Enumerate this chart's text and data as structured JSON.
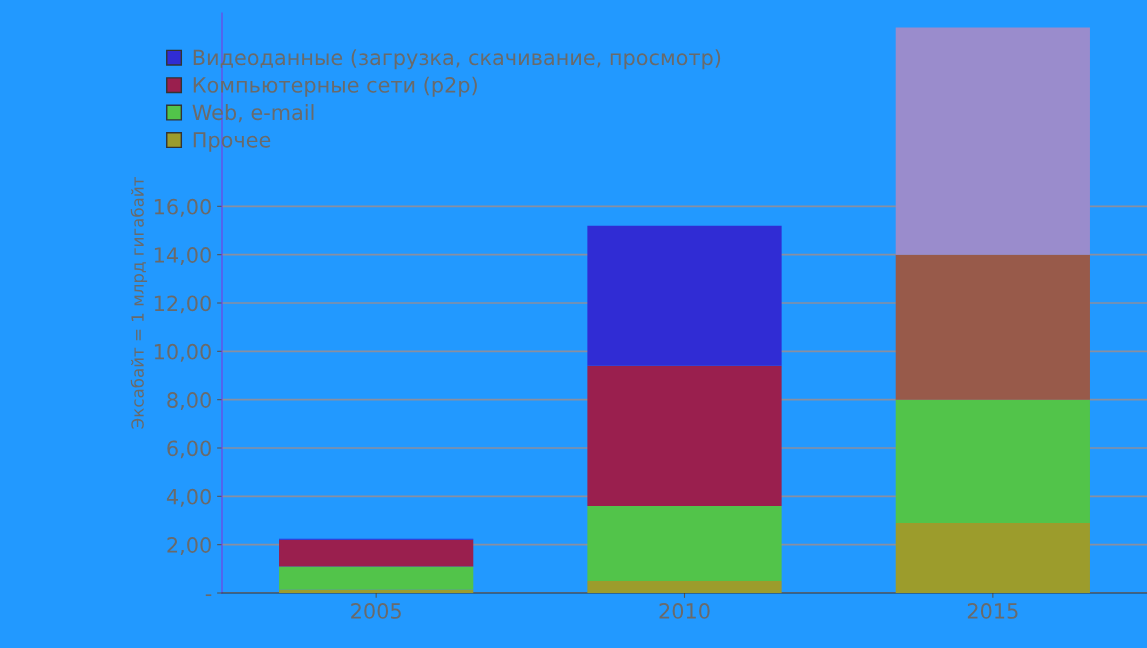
{
  "chart_data": {
    "type": "bar",
    "stacked": true,
    "ylabel": "Эксабайт = 1 млрд гигабайт",
    "categories": [
      "2005",
      "2010",
      "2015"
    ],
    "series": [
      {
        "name": "Прочее",
        "color": "#9c9c2c",
        "colors": [
          "#9c9c2c",
          "#9c9c2c",
          "#9c9c2c"
        ],
        "values": [
          0.15,
          0.5,
          2.9
        ]
      },
      {
        "name": "Web, e-mail",
        "color": "#52c44a",
        "colors": [
          "#52c44a",
          "#52c44a",
          "#52c44a"
        ],
        "values": [
          0.95,
          3.1,
          5.1
        ]
      },
      {
        "name": "Компьютерные сети (p2p)",
        "color": "#9a1f4e",
        "colors": [
          "#9a1f4e",
          "#9a1f4e",
          "#985a4a"
        ],
        "values": [
          1.1,
          5.8,
          6.0
        ]
      },
      {
        "name": "Видеоданные (загрузка, скачивание, просмотр)",
        "color": "#302cd4",
        "colors": [
          "#302cd4",
          "#302cd4",
          "#9a8ccc"
        ],
        "values": [
          0.05,
          5.8,
          9.4
        ]
      }
    ],
    "ylim": [
      0,
      24
    ],
    "yticks": [
      {
        "value": 0,
        "label": "-"
      },
      {
        "value": 2,
        "label": "2,00"
      },
      {
        "value": 4,
        "label": "4,00"
      },
      {
        "value": 6,
        "label": "6,00"
      },
      {
        "value": 8,
        "label": "8,00"
      },
      {
        "value": 10,
        "label": "10,00"
      },
      {
        "value": 12,
        "label": "12,00"
      },
      {
        "value": 14,
        "label": "14,00"
      },
      {
        "value": 16,
        "label": "16,00"
      }
    ],
    "grid": "y",
    "legend": "top left"
  }
}
